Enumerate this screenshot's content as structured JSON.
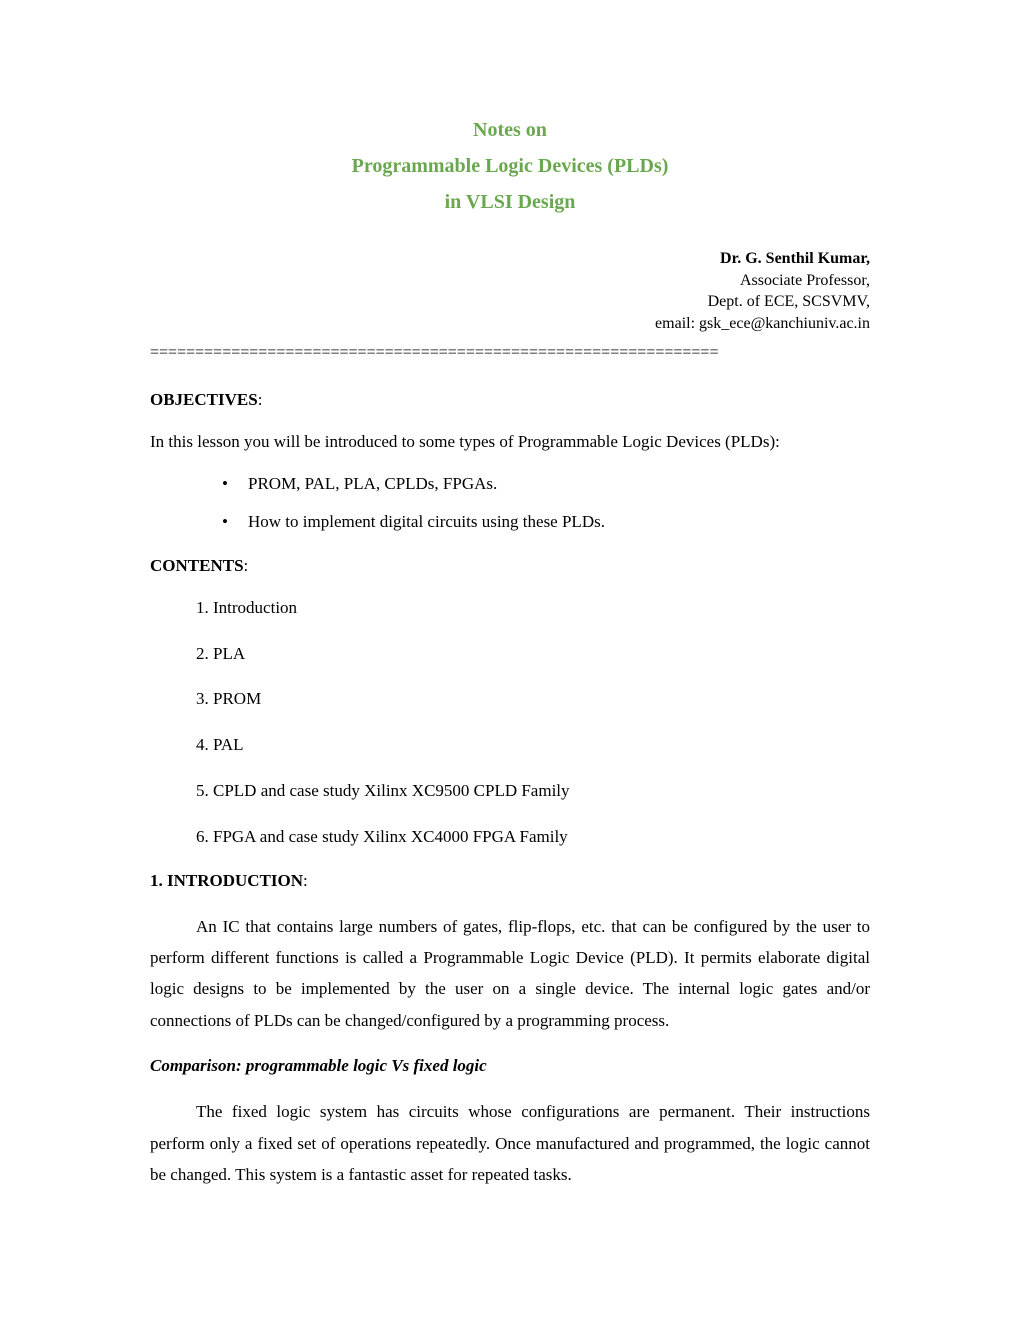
{
  "title": {
    "line1": "Notes on",
    "line2": "Programmable Logic Devices (PLDs)",
    "line3": "in VLSI Design"
  },
  "author": {
    "name": "Dr. G. Senthil Kumar,",
    "role": "Associate Professor,",
    "dept": "Dept. of ECE, SCSVMV,",
    "email": "email: gsk_ece@kanchiuniv.ac.in"
  },
  "divider": "===============================================================",
  "objectives": {
    "heading": "OBJECTIVES",
    "intro": "In this lesson you will be introduced to some types of Programmable Logic Devices (PLDs):",
    "bullets": [
      "PROM, PAL, PLA, CPLDs, FPGAs.",
      "How to implement digital circuits using these PLDs."
    ]
  },
  "contents": {
    "heading": "CONTENTS",
    "items": [
      "1. Introduction",
      "2. PLA",
      "3. PROM",
      "4. PAL",
      "5. CPLD and case study Xilinx XC9500 CPLD Family",
      "6. FPGA and case study Xilinx XC4000 FPGA Family"
    ]
  },
  "introduction": {
    "heading": "1. INTRODUCTION",
    "para1": "An IC that contains large numbers of gates, flip-flops, etc. that can be configured by the user to perform different functions is called a Programmable Logic Device (PLD). It permits elaborate digital logic designs to be implemented by the user on a single device. The internal logic gates and/or connections of PLDs can be changed/configured by a programming process.",
    "subheading": "Comparison: programmable logic Vs fixed logic",
    "para2": "The fixed logic system has circuits whose configurations are permanent. Their instructions perform only a fixed set of operations repeatedly. Once manufactured and programmed, the logic cannot be changed. This system is a fantastic asset for repeated tasks."
  },
  "colors": {
    "title": "#6aa84f",
    "text": "#000000",
    "background": "#ffffff"
  }
}
